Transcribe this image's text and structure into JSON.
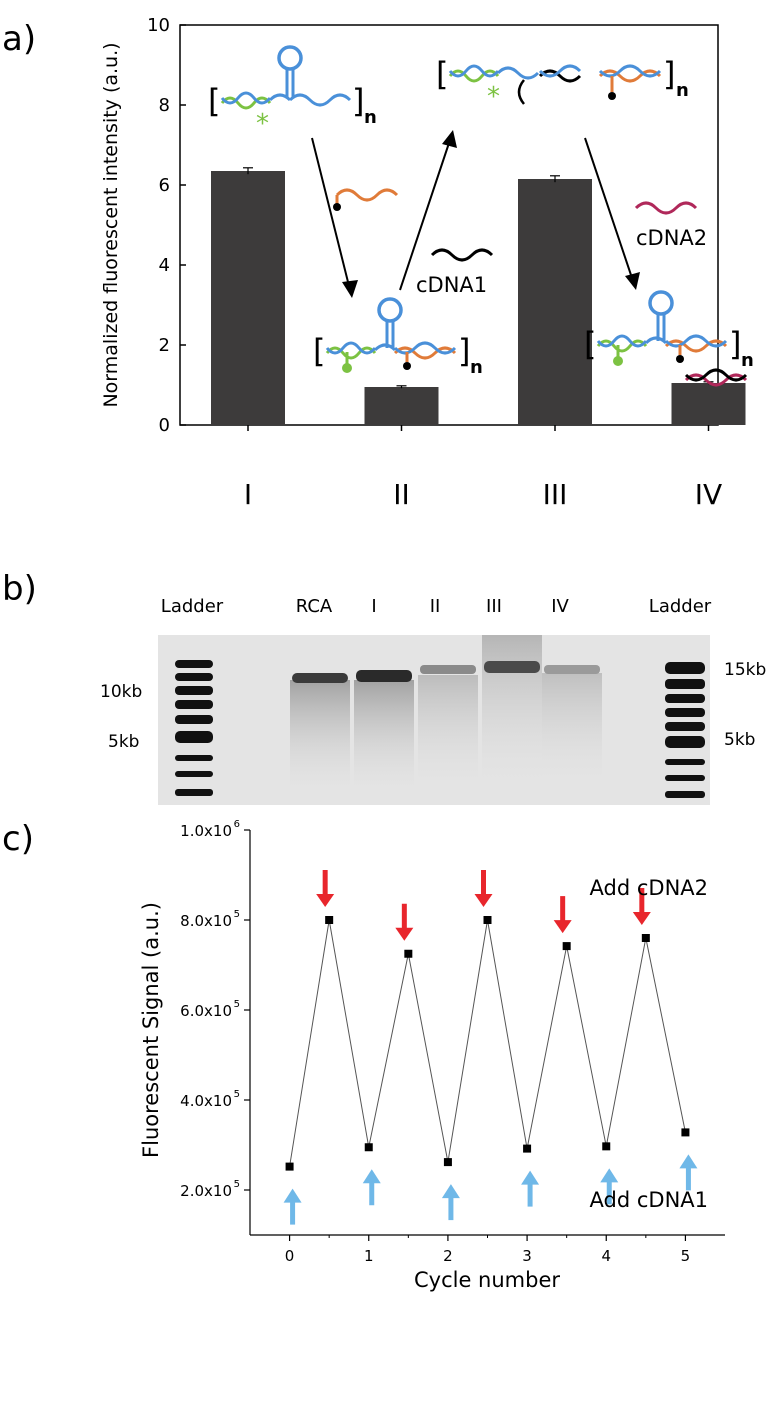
{
  "panel_labels": {
    "a": "a)",
    "b": "b)",
    "c": "c)"
  },
  "chart_data": [
    {
      "type": "bar",
      "panel": "a",
      "ylabel": "Normalized fluorescent intensity (a.u.)",
      "xlabel": "",
      "categories": [
        "I",
        "II",
        "III",
        "IV"
      ],
      "values": [
        6.35,
        0.95,
        6.15,
        1.05
      ],
      "errors": [
        0.08,
        0.03,
        0.08,
        0.03
      ],
      "ylim": [
        0,
        10
      ],
      "yticks": [
        "0",
        "2",
        "4",
        "6",
        "8",
        "10"
      ],
      "bar_color": "#3d3b3b",
      "annotations": {
        "cdna1": "cDNA1",
        "cdna2": "cDNA2",
        "repeat_sub": "n"
      },
      "strand_colors": {
        "green": "#7cc242",
        "blue": "#4a90d9",
        "orange": "#e07b39",
        "red": "#b0285a"
      }
    },
    {
      "type": "gel",
      "panel": "b",
      "lanes": [
        "Ladder",
        "RCA",
        "I",
        "II",
        "III",
        "IV",
        "Ladder"
      ],
      "left_markers": [
        "10kb",
        "5kb"
      ],
      "right_markers": [
        "15kb",
        "5kb"
      ]
    },
    {
      "type": "line",
      "panel": "c",
      "xlabel": "Cycle number",
      "ylabel": "Fluorescent Signal (a.u.)",
      "x": [
        0,
        0.5,
        1,
        1.5,
        2,
        2.5,
        3,
        3.5,
        4,
        4.5,
        5
      ],
      "y": [
        252000,
        800000,
        295000,
        725000,
        262000,
        800000,
        292000,
        742000,
        297000,
        760000,
        328000
      ],
      "xlim": [
        -0.5,
        5.5
      ],
      "ylim": [
        100000,
        1000000
      ],
      "xticks": [
        "0",
        "1",
        "2",
        "3",
        "4",
        "5"
      ],
      "yticks": [
        {
          "value": 200000,
          "mant": "2.0x10",
          "exp": "5"
        },
        {
          "value": 400000,
          "mant": "4.0x10",
          "exp": "5"
        },
        {
          "value": 600000,
          "mant": "6.0x10",
          "exp": "5"
        },
        {
          "value": 800000,
          "mant": "8.0x10",
          "exp": "5"
        },
        {
          "value": 1000000,
          "mant": "1.0x10",
          "exp": "6"
        }
      ],
      "annotations": {
        "top": "Add cDNA2",
        "bottom": "Add cDNA1"
      },
      "arrow_colors": {
        "add_cdna2": "#e8262c",
        "add_cdna1": "#6fb8e8"
      }
    }
  ]
}
